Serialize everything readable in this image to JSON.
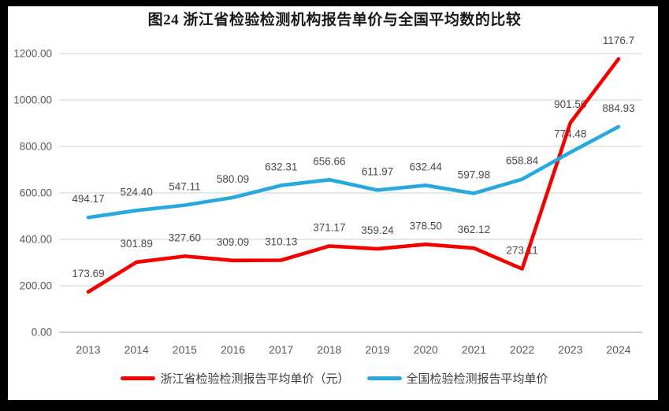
{
  "figure": {
    "border_color": "#000000",
    "background": "#ffffff"
  },
  "chart_data": {
    "type": "line",
    "title": "图24  浙江省检验检测机构报告单价与全国平均数的比较",
    "categories": [
      "2013",
      "2014",
      "2015",
      "2016",
      "2017",
      "2018",
      "2019",
      "2020",
      "2021",
      "2022",
      "2023",
      "2024"
    ],
    "series": [
      {
        "name": "浙江省检验检测报告平均单价（元）",
        "color": "#f40000",
        "values": [
          173.69,
          301.89,
          327.6,
          309.09,
          310.13,
          371.17,
          359.24,
          378.5,
          362.12,
          273.11,
          901.56,
          1176.7
        ],
        "labels": [
          "173.69",
          "301.89",
          "327.60",
          "309.09",
          "310.13",
          "371.17",
          "359.24",
          "378.50",
          "362.12",
          "273.11",
          "901.56",
          "1176.7"
        ]
      },
      {
        "name": "全国检验检测报告平均单价",
        "color": "#27a8df",
        "values": [
          494.17,
          524.4,
          547.11,
          580.09,
          632.31,
          656.66,
          611.97,
          632.44,
          597.98,
          658.84,
          774.48,
          884.93
        ],
        "labels": [
          "494.17",
          "524.40",
          "547.11",
          "580.09",
          "632.31",
          "656.66",
          "611.97",
          "632.44",
          "597.98",
          "658.84",
          "774.48",
          "884.93"
        ]
      }
    ],
    "ylim": [
      0,
      1200
    ],
    "yticks": [
      0,
      200,
      400,
      600,
      800,
      1000,
      1200
    ],
    "ytick_labels": [
      "0.00",
      "200.00",
      "400.00",
      "600.00",
      "800.00",
      "1000.00",
      "1200.00"
    ],
    "grid": "horizontal",
    "legend_position": "bottom",
    "axis_text_color": "#595959",
    "data_label_color": "#4a4a4a",
    "grid_color": "#d9d9d9",
    "axis_line_color": "#bfbfbf"
  }
}
